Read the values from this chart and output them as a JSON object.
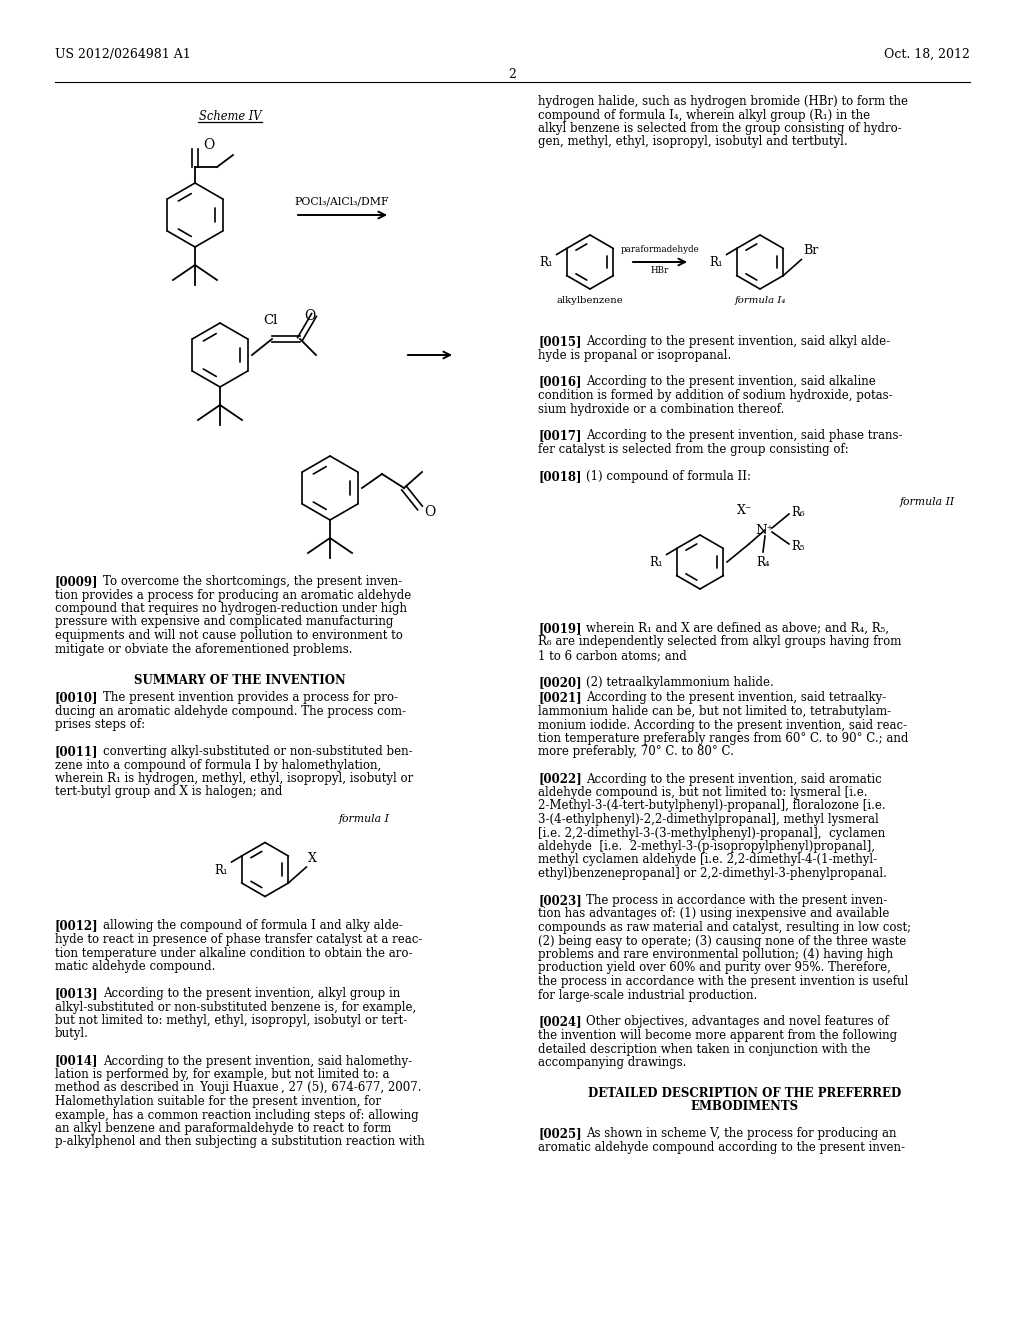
{
  "background_color": "#ffffff",
  "header_left": "US 2012/0264981 A1",
  "header_right": "Oct. 18, 2012",
  "page_number": "2"
}
